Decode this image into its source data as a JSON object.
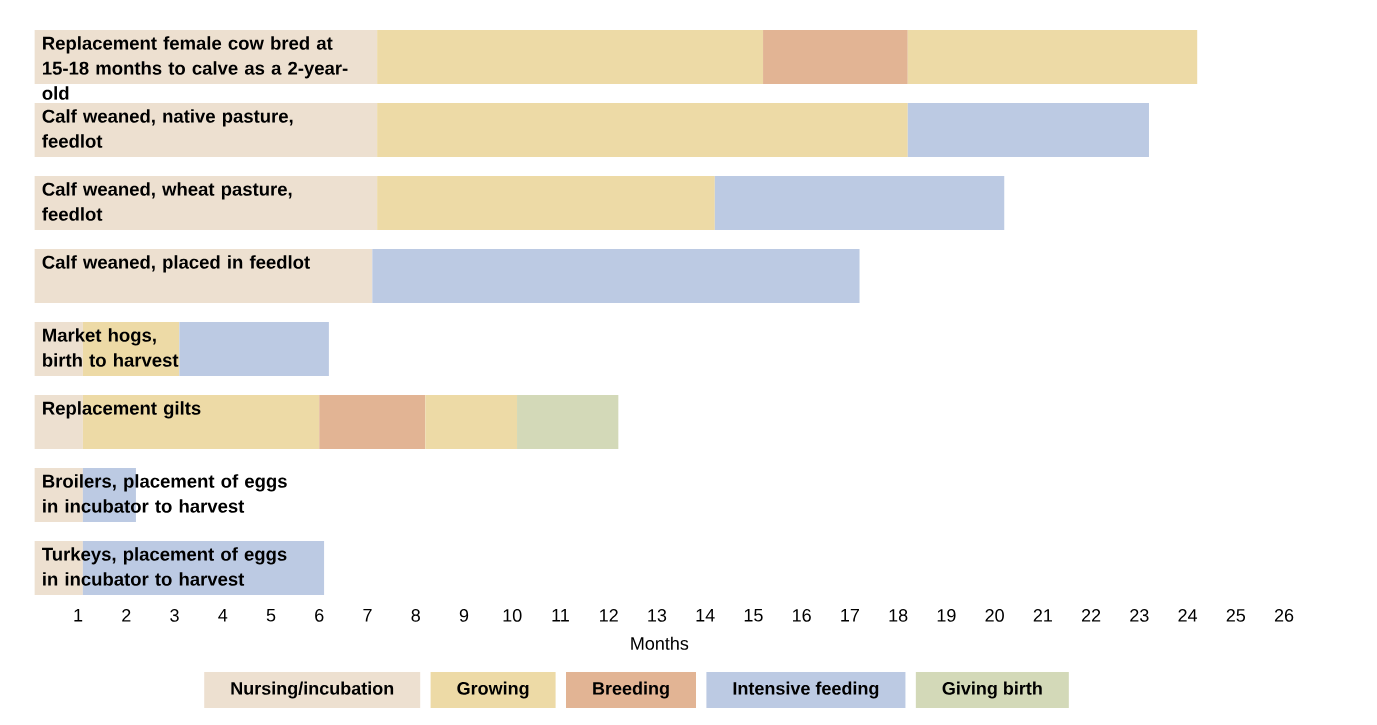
{
  "chart_data": {
    "type": "bar",
    "orientation": "horizontal",
    "xlabel": "Months",
    "legend": "bottom",
    "categories": [
      "Replacement female cow bred at 15-18 months to calve as a 2-year-old",
      "Calf weaned, native pasture, feedlot",
      "Calf weaned, wheat pasture, feedlot",
      "Calf weaned, placed in feedlot",
      "Market hogs, birth to harvest",
      "Replacement gilts",
      "Broilers, placement of eggs in incubator to harvest",
      "Turkeys, placement of eggs in incubator to harvest"
    ],
    "xlim": [
      0.1,
      26
    ],
    "xticks": [
      1,
      2,
      3,
      4,
      5,
      6,
      7,
      8,
      9,
      10,
      11,
      12,
      13,
      14,
      15,
      16,
      17,
      18,
      19,
      20,
      21,
      22,
      23,
      24,
      25,
      26
    ],
    "series": [
      {
        "name": "Nursing/incubation",
        "color": "#ede0d0",
        "base": [
          0.1,
          0.1,
          0.1,
          0.1,
          0.1,
          0.1,
          0.1,
          0.1
        ],
        "values": [
          7.1,
          7.1,
          7.1,
          7.0,
          1.0,
          1.0,
          1.0,
          1.0
        ]
      },
      {
        "name": "Growing",
        "color": "#eddaa6",
        "base": [
          7.2,
          7.2,
          7.2,
          null,
          1.1,
          1.1,
          null,
          null
        ],
        "values": [
          8.0,
          11.0,
          7.0,
          null,
          2.0,
          4.9,
          null,
          null
        ]
      },
      {
        "name": "Breeding",
        "color": "#e2b494",
        "base": [
          15.2,
          null,
          null,
          null,
          null,
          6.0,
          null,
          null
        ],
        "values": [
          3.0,
          null,
          null,
          null,
          null,
          2.2,
          null,
          null
        ]
      },
      {
        "name": "Intensive feeding",
        "color": "#bccae3",
        "base": [
          null,
          18.2,
          14.2,
          7.1,
          3.1,
          null,
          1.1,
          1.1
        ],
        "values": [
          null,
          5.0,
          6.0,
          10.1,
          3.1,
          null,
          1.1,
          5.0
        ]
      },
      {
        "color": "#eddaa6",
        "base": [
          18.2,
          null,
          null,
          null,
          null,
          8.2,
          null,
          null
        ],
        "values": [
          6.0,
          null,
          null,
          null,
          null,
          1.9,
          null,
          null
        ]
      },
      {
        "name": "Giving birth",
        "color": "#d3d9b8",
        "base": [
          null,
          null,
          null,
          null,
          null,
          10.1,
          null,
          null
        ],
        "values": [
          null,
          null,
          null,
          null,
          null,
          2.1,
          null,
          null
        ]
      }
    ]
  }
}
